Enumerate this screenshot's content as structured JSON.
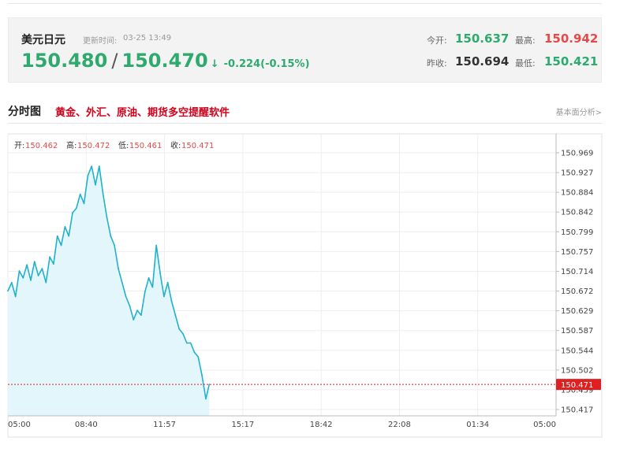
{
  "quote": {
    "name": "美元日元",
    "time_label": "更新时间:",
    "time": "03-25 13:49",
    "price1": "150.480",
    "slash": "/",
    "price2": "150.470",
    "arrow": "↓",
    "change": "-0.224(-0.15%)",
    "open_label": "今开:",
    "open": "150.637",
    "high_label": "最高:",
    "high": "150.942",
    "prev_label": "昨收:",
    "prev": "150.694",
    "low_label": "最低:",
    "low": "150.421"
  },
  "section": {
    "title": "分时图",
    "link": "黄金、外汇、原油、期货多空提醒软件",
    "right_link": "基本面分析>"
  },
  "ohlc": {
    "open_label": "开:",
    "open": "150.462",
    "high_label": "高:",
    "high": "150.472",
    "low_label": "低:",
    "low": "150.461",
    "close_label": "收:",
    "close": "150.471"
  },
  "colors": {
    "line": "#21b1cc",
    "area": "#e3f6fb",
    "current": "#e02020",
    "up": "#e5494a",
    "down": "#2eaa6e"
  },
  "chart_data": {
    "type": "area",
    "x_ticks": [
      "05:00",
      "08:40",
      "11:57",
      "15:17",
      "18:42",
      "22:08",
      "01:34",
      "05:00"
    ],
    "y_ticks": [
      "150.969",
      "150.927",
      "150.884",
      "150.842",
      "150.799",
      "150.757",
      "150.714",
      "150.672",
      "150.629",
      "150.587",
      "150.544",
      "150.502",
      "150.459",
      "150.417"
    ],
    "ylim": [
      150.417,
      150.969
    ],
    "current_price": 150.471,
    "current_label": "150.471",
    "grid": true,
    "series": [
      {
        "x": [
          "05:00",
          "05:10",
          "05:20",
          "05:30",
          "05:40",
          "05:50",
          "06:00",
          "06:10",
          "06:20",
          "06:30",
          "06:40",
          "06:50",
          "07:00",
          "07:10",
          "07:20",
          "07:30",
          "07:40",
          "07:50",
          "08:00",
          "08:10",
          "08:20",
          "08:30",
          "08:40",
          "08:50",
          "09:00",
          "09:10",
          "09:20",
          "09:30",
          "09:40",
          "09:50",
          "10:00",
          "10:10",
          "10:20",
          "10:30",
          "10:40",
          "10:50",
          "11:00",
          "11:10",
          "11:20",
          "11:30",
          "11:40",
          "11:50",
          "12:00",
          "12:10",
          "12:20",
          "12:30",
          "12:40",
          "12:50",
          "13:00",
          "13:10",
          "13:20",
          "13:30",
          "13:40",
          "13:49"
        ],
        "values": [
          150.672,
          150.69,
          150.66,
          150.715,
          150.7,
          150.728,
          150.695,
          150.735,
          150.705,
          150.72,
          150.69,
          150.745,
          150.73,
          150.79,
          150.77,
          150.81,
          150.79,
          150.84,
          150.85,
          150.88,
          150.86,
          150.92,
          150.94,
          150.9,
          150.94,
          150.88,
          150.83,
          150.79,
          150.77,
          150.72,
          150.69,
          150.66,
          150.64,
          150.61,
          150.63,
          150.62,
          150.67,
          150.7,
          150.68,
          150.77,
          150.71,
          150.66,
          150.69,
          150.65,
          150.62,
          150.59,
          150.58,
          150.56,
          150.56,
          150.54,
          150.53,
          150.49,
          150.44,
          150.471
        ]
      }
    ]
  }
}
